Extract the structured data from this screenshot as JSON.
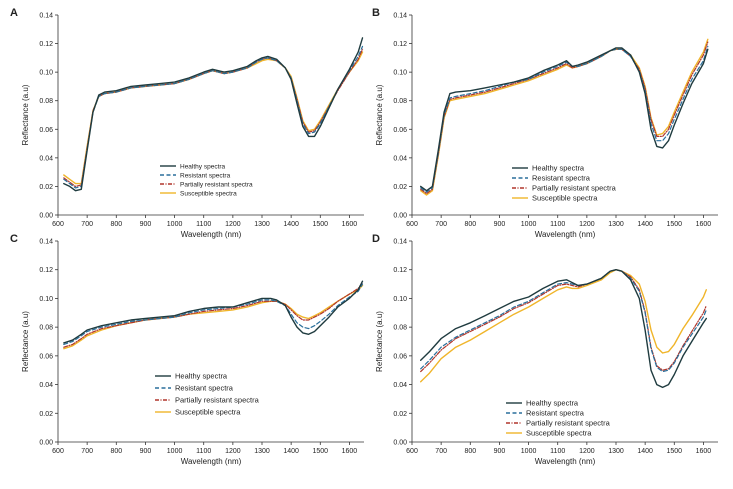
{
  "colors": {
    "healthy": "#1f3b3f",
    "resistant": "#2a6f9b",
    "partially": "#b0352b",
    "susceptible": "#f0b52a",
    "axis": "#333333"
  },
  "chart_data": [
    {
      "panel": "A",
      "type": "line",
      "xlabel": "Wavelength (nm)",
      "ylabel": "Reflectance (a.u)",
      "xlim": [
        600,
        1650
      ],
      "ylim": [
        0,
        0.14
      ],
      "xticks": [
        "600",
        "700",
        "800",
        "900",
        "1000",
        "1100",
        "1200",
        "1300",
        "1400",
        "1500",
        "1600"
      ],
      "yticks": [
        "0.00",
        "0.02",
        "0.04",
        "0.06",
        "0.08",
        "0.10",
        "0.12",
        "0.14"
      ],
      "legend_position": "lower-left",
      "x": [
        620,
        640,
        660,
        680,
        700,
        720,
        740,
        760,
        800,
        850,
        900,
        950,
        1000,
        1050,
        1100,
        1130,
        1150,
        1170,
        1200,
        1250,
        1280,
        1300,
        1320,
        1350,
        1380,
        1400,
        1420,
        1440,
        1460,
        1480,
        1500,
        1530,
        1560,
        1600,
        1630,
        1645
      ],
      "series": [
        {
          "name": "Healthy spectra",
          "style": "solid",
          "values": [
            0.022,
            0.02,
            0.017,
            0.018,
            0.045,
            0.072,
            0.084,
            0.086,
            0.087,
            0.09,
            0.091,
            0.092,
            0.093,
            0.096,
            0.1,
            0.102,
            0.101,
            0.1,
            0.101,
            0.104,
            0.108,
            0.11,
            0.111,
            0.109,
            0.103,
            0.095,
            0.078,
            0.062,
            0.055,
            0.055,
            0.062,
            0.075,
            0.088,
            0.102,
            0.114,
            0.124
          ]
        },
        {
          "name": "Resistant spectra",
          "style": "dashed",
          "values": [
            0.025,
            0.022,
            0.019,
            0.02,
            0.046,
            0.072,
            0.083,
            0.085,
            0.086,
            0.089,
            0.09,
            0.091,
            0.092,
            0.095,
            0.099,
            0.101,
            0.1,
            0.099,
            0.1,
            0.103,
            0.107,
            0.109,
            0.11,
            0.108,
            0.103,
            0.096,
            0.08,
            0.064,
            0.057,
            0.058,
            0.064,
            0.076,
            0.088,
            0.101,
            0.111,
            0.118
          ]
        },
        {
          "name": "Partially resistant spectra",
          "style": "dashdot",
          "values": [
            0.026,
            0.023,
            0.02,
            0.021,
            0.047,
            0.073,
            0.083,
            0.085,
            0.086,
            0.089,
            0.09,
            0.091,
            0.092,
            0.095,
            0.099,
            0.101,
            0.1,
            0.099,
            0.1,
            0.103,
            0.107,
            0.109,
            0.11,
            0.108,
            0.103,
            0.096,
            0.081,
            0.065,
            0.058,
            0.059,
            0.065,
            0.076,
            0.087,
            0.1,
            0.109,
            0.116
          ]
        },
        {
          "name": "Susceptible spectra",
          "style": "solid",
          "values": [
            0.028,
            0.025,
            0.022,
            0.022,
            0.048,
            0.073,
            0.083,
            0.085,
            0.086,
            0.089,
            0.09,
            0.091,
            0.092,
            0.095,
            0.099,
            0.101,
            0.1,
            0.099,
            0.1,
            0.103,
            0.106,
            0.108,
            0.109,
            0.108,
            0.103,
            0.097,
            0.082,
            0.066,
            0.059,
            0.06,
            0.066,
            0.077,
            0.088,
            0.1,
            0.108,
            0.114
          ]
        }
      ]
    },
    {
      "panel": "B",
      "type": "line",
      "xlabel": "Wavelength (nm)",
      "ylabel": "Reflectance (a.u)",
      "xlim": [
        600,
        1650
      ],
      "ylim": [
        0,
        0.14
      ],
      "xticks": [
        "600",
        "700",
        "800",
        "900",
        "1000",
        "1100",
        "1200",
        "1300",
        "1400",
        "1500",
        "1600"
      ],
      "yticks": [
        "0.00",
        "0.02",
        "0.04",
        "0.06",
        "0.08",
        "0.10",
        "0.12",
        "0.14"
      ],
      "legend_position": "lower-left",
      "x": [
        630,
        650,
        670,
        690,
        710,
        730,
        750,
        800,
        850,
        900,
        950,
        1000,
        1050,
        1100,
        1130,
        1150,
        1170,
        1200,
        1250,
        1280,
        1300,
        1320,
        1350,
        1380,
        1400,
        1420,
        1440,
        1460,
        1480,
        1500,
        1530,
        1560,
        1600,
        1615
      ],
      "series": [
        {
          "name": "Healthy spectra",
          "style": "solid",
          "values": [
            0.02,
            0.017,
            0.02,
            0.045,
            0.072,
            0.085,
            0.086,
            0.087,
            0.089,
            0.091,
            0.093,
            0.096,
            0.101,
            0.105,
            0.108,
            0.104,
            0.105,
            0.107,
            0.112,
            0.115,
            0.117,
            0.117,
            0.112,
            0.1,
            0.085,
            0.06,
            0.048,
            0.047,
            0.052,
            0.063,
            0.078,
            0.092,
            0.106,
            0.116
          ]
        },
        {
          "name": "Resistant spectra",
          "style": "dashed",
          "values": [
            0.019,
            0.016,
            0.019,
            0.043,
            0.07,
            0.082,
            0.083,
            0.085,
            0.087,
            0.09,
            0.093,
            0.095,
            0.1,
            0.104,
            0.107,
            0.104,
            0.104,
            0.106,
            0.111,
            0.115,
            0.116,
            0.116,
            0.111,
            0.101,
            0.087,
            0.064,
            0.052,
            0.052,
            0.057,
            0.067,
            0.081,
            0.095,
            0.108,
            0.118
          ]
        },
        {
          "name": "Partially resistant spectra",
          "style": "dashdot",
          "values": [
            0.018,
            0.015,
            0.018,
            0.042,
            0.069,
            0.081,
            0.082,
            0.084,
            0.086,
            0.089,
            0.092,
            0.095,
            0.099,
            0.103,
            0.106,
            0.103,
            0.104,
            0.106,
            0.111,
            0.115,
            0.116,
            0.116,
            0.111,
            0.102,
            0.089,
            0.067,
            0.055,
            0.055,
            0.06,
            0.07,
            0.084,
            0.098,
            0.112,
            0.121
          ]
        },
        {
          "name": "Susceptible spectra",
          "style": "solid",
          "values": [
            0.017,
            0.014,
            0.017,
            0.041,
            0.068,
            0.08,
            0.081,
            0.083,
            0.085,
            0.088,
            0.091,
            0.094,
            0.098,
            0.102,
            0.105,
            0.103,
            0.104,
            0.106,
            0.111,
            0.115,
            0.116,
            0.116,
            0.112,
            0.103,
            0.09,
            0.068,
            0.056,
            0.057,
            0.062,
            0.072,
            0.086,
            0.1,
            0.114,
            0.123
          ]
        }
      ]
    },
    {
      "panel": "C",
      "type": "line",
      "xlabel": "Wavelength (nm)",
      "ylabel": "Reflectance (a.u)",
      "xlim": [
        600,
        1650
      ],
      "ylim": [
        0,
        0.14
      ],
      "xticks": [
        "600",
        "700",
        "800",
        "900",
        "1000",
        "1100",
        "1200",
        "1300",
        "1400",
        "1500",
        "1600"
      ],
      "yticks": [
        "0.00",
        "0.02",
        "0.04",
        "0.06",
        "0.08",
        "0.10",
        "0.12",
        "0.14"
      ],
      "legend_position": "lower-left",
      "x": [
        620,
        650,
        680,
        700,
        750,
        800,
        850,
        900,
        950,
        1000,
        1050,
        1100,
        1150,
        1200,
        1250,
        1300,
        1330,
        1350,
        1380,
        1400,
        1420,
        1440,
        1460,
        1480,
        1500,
        1530,
        1560,
        1600,
        1630,
        1645
      ],
      "series": [
        {
          "name": "Healthy spectra",
          "style": "solid",
          "values": [
            0.069,
            0.071,
            0.075,
            0.078,
            0.081,
            0.083,
            0.085,
            0.086,
            0.087,
            0.088,
            0.091,
            0.093,
            0.094,
            0.094,
            0.097,
            0.1,
            0.1,
            0.099,
            0.095,
            0.087,
            0.08,
            0.076,
            0.075,
            0.077,
            0.081,
            0.087,
            0.094,
            0.1,
            0.106,
            0.112
          ]
        },
        {
          "name": "Resistant spectra",
          "style": "dashed",
          "values": [
            0.068,
            0.07,
            0.074,
            0.077,
            0.08,
            0.082,
            0.084,
            0.085,
            0.086,
            0.087,
            0.09,
            0.092,
            0.093,
            0.094,
            0.096,
            0.099,
            0.099,
            0.098,
            0.095,
            0.089,
            0.083,
            0.08,
            0.079,
            0.081,
            0.084,
            0.089,
            0.095,
            0.101,
            0.105,
            0.11
          ]
        },
        {
          "name": "Partially resistant spectra",
          "style": "dashdot",
          "values": [
            0.066,
            0.068,
            0.072,
            0.075,
            0.079,
            0.081,
            0.083,
            0.085,
            0.086,
            0.087,
            0.089,
            0.091,
            0.092,
            0.093,
            0.095,
            0.098,
            0.098,
            0.098,
            0.096,
            0.092,
            0.088,
            0.085,
            0.085,
            0.087,
            0.089,
            0.093,
            0.098,
            0.103,
            0.107,
            0.111
          ]
        },
        {
          "name": "Susceptible spectra",
          "style": "solid",
          "values": [
            0.065,
            0.067,
            0.071,
            0.074,
            0.078,
            0.081,
            0.083,
            0.085,
            0.086,
            0.087,
            0.089,
            0.09,
            0.091,
            0.092,
            0.094,
            0.097,
            0.098,
            0.098,
            0.096,
            0.093,
            0.089,
            0.087,
            0.086,
            0.088,
            0.09,
            0.094,
            0.098,
            0.103,
            0.106,
            0.109
          ]
        }
      ]
    },
    {
      "panel": "D",
      "type": "line",
      "xlabel": "Wavelength (nm)",
      "ylabel": "Reflectance (a.u)",
      "xlim": [
        600,
        1650
      ],
      "ylim": [
        0,
        0.14
      ],
      "xticks": [
        "600",
        "700",
        "800",
        "900",
        "1000",
        "1100",
        "1200",
        "1300",
        "1400",
        "1500",
        "1600"
      ],
      "yticks": [
        "0.00",
        "0.02",
        "0.04",
        "0.06",
        "0.08",
        "0.10",
        "0.12",
        "0.14"
      ],
      "legend_position": "lower-left",
      "x": [
        630,
        660,
        700,
        750,
        800,
        850,
        900,
        950,
        1000,
        1050,
        1100,
        1130,
        1150,
        1170,
        1200,
        1250,
        1280,
        1300,
        1320,
        1350,
        1380,
        1400,
        1420,
        1440,
        1460,
        1480,
        1500,
        1530,
        1560,
        1600,
        1610
      ],
      "series": [
        {
          "name": "Healthy spectra",
          "style": "solid",
          "values": [
            0.057,
            0.063,
            0.072,
            0.079,
            0.083,
            0.088,
            0.093,
            0.098,
            0.101,
            0.107,
            0.112,
            0.113,
            0.111,
            0.109,
            0.11,
            0.114,
            0.119,
            0.12,
            0.119,
            0.113,
            0.1,
            0.078,
            0.05,
            0.04,
            0.038,
            0.04,
            0.047,
            0.06,
            0.07,
            0.083,
            0.086
          ]
        },
        {
          "name": "Resistant spectra",
          "style": "dashed",
          "values": [
            0.051,
            0.057,
            0.066,
            0.073,
            0.078,
            0.083,
            0.088,
            0.094,
            0.098,
            0.104,
            0.11,
            0.111,
            0.11,
            0.109,
            0.11,
            0.114,
            0.119,
            0.12,
            0.119,
            0.114,
            0.105,
            0.09,
            0.065,
            0.052,
            0.049,
            0.05,
            0.055,
            0.066,
            0.075,
            0.087,
            0.092
          ]
        },
        {
          "name": "Partially resistant spectra",
          "style": "dashdot",
          "values": [
            0.049,
            0.055,
            0.064,
            0.072,
            0.077,
            0.082,
            0.087,
            0.093,
            0.097,
            0.103,
            0.109,
            0.11,
            0.109,
            0.108,
            0.11,
            0.114,
            0.119,
            0.12,
            0.119,
            0.115,
            0.106,
            0.091,
            0.066,
            0.053,
            0.05,
            0.051,
            0.056,
            0.067,
            0.077,
            0.09,
            0.095
          ]
        },
        {
          "name": "Susceptible spectra",
          "style": "solid",
          "values": [
            0.042,
            0.048,
            0.058,
            0.066,
            0.071,
            0.077,
            0.083,
            0.089,
            0.094,
            0.1,
            0.106,
            0.108,
            0.107,
            0.107,
            0.109,
            0.113,
            0.118,
            0.12,
            0.119,
            0.116,
            0.11,
            0.098,
            0.078,
            0.066,
            0.062,
            0.063,
            0.068,
            0.079,
            0.088,
            0.101,
            0.106
          ]
        }
      ]
    }
  ]
}
